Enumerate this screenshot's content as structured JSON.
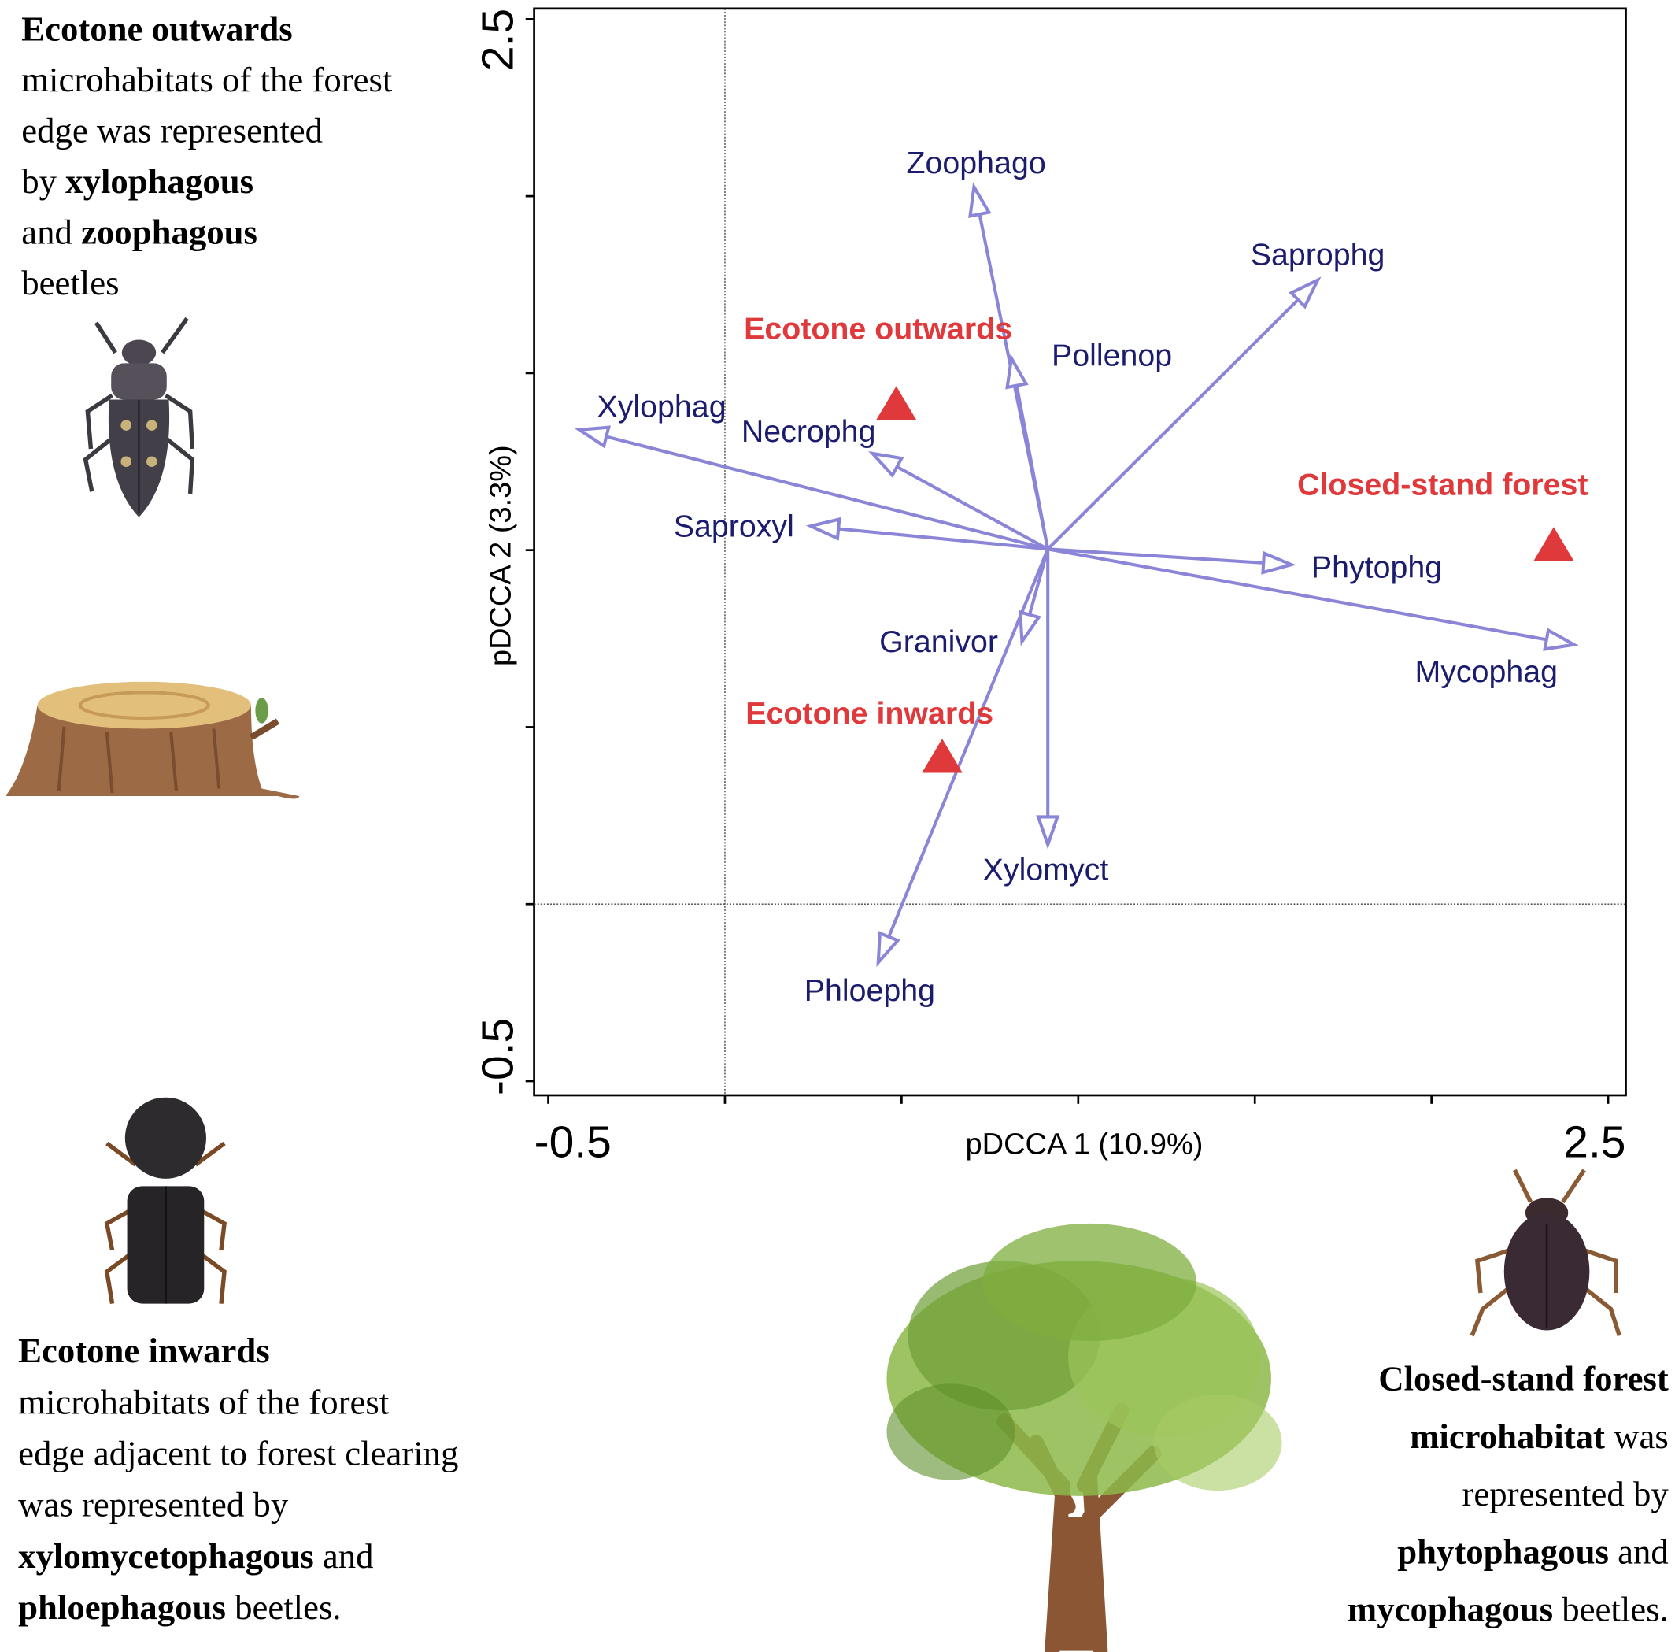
{
  "chart_data": {
    "type": "biplot",
    "xlabel": "pDCCA 1 (10.9%)",
    "ylabel": "pDCCA 2 (3.3%)",
    "xlim": [
      -0.54,
      2.55
    ],
    "ylim": [
      -0.54,
      2.53
    ],
    "xticks": [
      -0.5,
      {
        "value": 0,
        "label": null
      },
      {
        "value": 0.5,
        "label": null
      },
      {
        "value": 1,
        "label": null
      },
      {
        "value": 1.5,
        "label": null
      },
      {
        "value": 2,
        "label": null
      },
      2.5
    ],
    "yticks": [
      -0.5,
      {
        "value": 0,
        "label": null
      },
      {
        "value": 0.5,
        "label": null
      },
      {
        "value": 1,
        "label": null
      },
      {
        "value": 1.5,
        "label": null
      },
      {
        "value": 2,
        "label": null
      },
      2.5
    ],
    "zero_lines": true,
    "arrows": {
      "color": "#8b85d8",
      "label_color": "#1c1c6e",
      "origin": [
        0.914,
        1.003
      ],
      "names": [
        "Zoophago",
        "Saprophg",
        "Pollenop",
        "Xylophag",
        "Necrophg",
        "Saproxyl",
        "Phytophg",
        "Mycophag",
        "Granivor",
        "Xylomyct",
        "Phloephg"
      ],
      "x": [
        0.705,
        1.678,
        0.811,
        -0.412,
        0.418,
        0.243,
        1.603,
        2.403,
        0.841,
        0.914,
        0.434
      ],
      "y": [
        2.026,
        1.763,
        1.542,
        1.34,
        1.273,
        1.068,
        0.959,
        0.733,
        0.742,
        0.168,
        -0.165
      ]
    },
    "points": {
      "color": "#e0393b",
      "names": [
        "Ecotone outwards",
        "Closed-stand forest",
        "Ecotone inwards"
      ],
      "x": [
        0.485,
        2.346,
        0.615
      ],
      "y": [
        1.412,
        1.014,
        0.416
      ]
    }
  },
  "notes": [
    {
      "lines": [
        [
          {
            "text": "Ecotone outwards",
            "bold": true
          }
        ],
        [
          {
            "text": "microhabitats of the forest",
            "bold": false
          }
        ],
        [
          {
            "text": "edge was represented",
            "bold": false
          }
        ],
        [
          {
            "text": "by",
            "bold": false
          },
          {
            "text": "xylophagous",
            "bold": true
          }
        ],
        [
          {
            "text": "and",
            "bold": false
          },
          {
            "text": "zoophagous",
            "bold": true
          }
        ],
        [
          {
            "text": "beetles",
            "bold": false
          }
        ]
      ]
    },
    {
      "lines": [
        [
          {
            "text": "Ecotone inwards",
            "bold": true
          }
        ],
        [
          {
            "text": "microhabitats of the forest",
            "bold": false
          }
        ],
        [
          {
            "text": "edge adjacent to forest clearing",
            "bold": false
          }
        ],
        [
          {
            "text": "was represented by",
            "bold": false
          }
        ],
        [
          {
            "text": "xylomycetophagous",
            "bold": true
          },
          {
            "text": "and",
            "bold": false
          }
        ],
        [
          {
            "text": "phloephagous",
            "bold": true
          },
          {
            "text": "beetles.",
            "bold": false
          }
        ]
      ]
    },
    {
      "lines": [
        [
          {
            "text": "Closed-stand forest",
            "bold": true
          }
        ],
        [
          {
            "text": "microhabitat",
            "bold": true
          },
          {
            "text": "was",
            "bold": false
          }
        ],
        [
          {
            "text": "represented by",
            "bold": false
          }
        ],
        [
          {
            "text": "phytophagous",
            "bold": true
          },
          {
            "text": "and",
            "bold": false
          }
        ],
        [
          {
            "text": "mycophagous",
            "bold": true
          },
          {
            "text": "beetles.",
            "bold": false
          }
        ]
      ]
    }
  ]
}
